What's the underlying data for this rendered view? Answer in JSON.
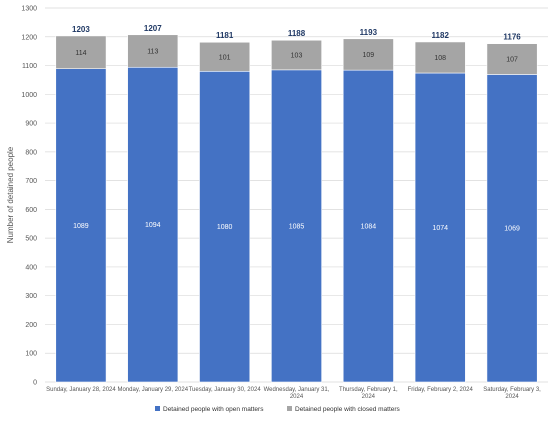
{
  "chart_data": {
    "type": "bar",
    "stacked": true,
    "categories": [
      [
        "Sunday, January 28, 2024"
      ],
      [
        "Monday, January 29, 2024"
      ],
      [
        "Tuesday, January 30, 2024"
      ],
      [
        "Wednesday, January 31,",
        "2024"
      ],
      [
        "Thursday, February 1,",
        "2024"
      ],
      [
        "Friday, February 2, 2024"
      ],
      [
        "Saturday, February 3,",
        "2024"
      ]
    ],
    "series": [
      {
        "name": "Detained people with open matters",
        "color": "#4472c4",
        "values": [
          1089,
          1094,
          1080,
          1085,
          1084,
          1074,
          1069
        ]
      },
      {
        "name": "Detained people with closed matters",
        "color": "#a5a5a5",
        "values": [
          114,
          113,
          101,
          103,
          109,
          108,
          107
        ]
      }
    ],
    "totals": [
      1203,
      1207,
      1181,
      1188,
      1193,
      1182,
      1176
    ],
    "ylabel": "Number of detained people",
    "xlabel": "",
    "ylim": [
      0,
      1300
    ],
    "yticks": [
      0,
      100,
      200,
      300,
      400,
      500,
      600,
      700,
      800,
      900,
      1000,
      1100,
      1200,
      1300
    ],
    "grid": true,
    "legend_position": "bottom"
  }
}
